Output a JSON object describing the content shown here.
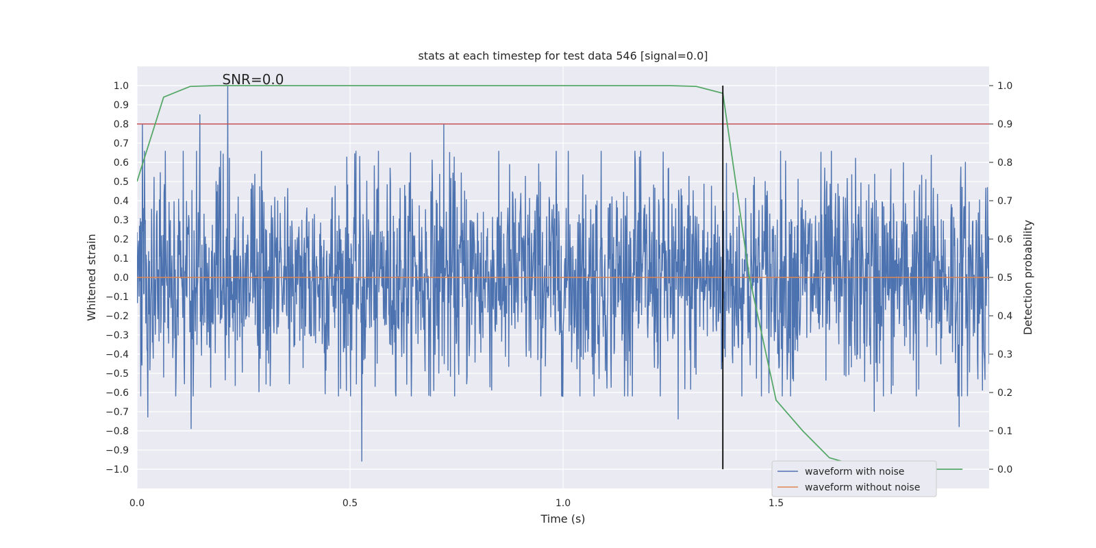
{
  "chart_data": {
    "type": "line",
    "title": "stats at each timestep for test data 546 [signal=0.0]",
    "annotation": "SNR=0.0",
    "xlabel": "Time (s)",
    "ylabel": "Whitened strain",
    "y2label": "Detection probability",
    "xlim": [
      0.0,
      2.0
    ],
    "ylim": [
      -1.1,
      1.1
    ],
    "y2lim": [
      -0.05,
      1.05
    ],
    "xticks": [
      0.0,
      0.5,
      1.0,
      1.5
    ],
    "xtick_labels": [
      "0.0",
      "0.5",
      "1.0",
      "1.5"
    ],
    "yticks": [
      1.0,
      0.9,
      0.8,
      0.7,
      0.6,
      0.5,
      0.4,
      0.3,
      0.2,
      0.1,
      0.0,
      -0.1,
      -0.2,
      -0.3,
      -0.4,
      -0.5,
      -0.6,
      -0.7,
      -0.8,
      -0.9,
      -1.0
    ],
    "ytick_labels": [
      "1.0",
      "0.9",
      "0.8",
      "0.7",
      "0.6",
      "0.5",
      "0.4",
      "0.3",
      "0.2",
      "0.1",
      "0.0",
      "−0.1",
      "−0.2",
      "−0.3",
      "−0.4",
      "−0.5",
      "−0.6",
      "−0.7",
      "−0.8",
      "−0.9",
      "−1.0"
    ],
    "y2ticks": [
      1.0,
      0.9,
      0.8,
      0.7,
      0.6,
      0.5,
      0.4,
      0.3,
      0.2,
      0.1,
      0.0
    ],
    "y2tick_labels": [
      "1.0",
      "0.9",
      "0.8",
      "0.7",
      "0.6",
      "0.5",
      "0.4",
      "0.3",
      "0.2",
      "0.1",
      "0.0"
    ],
    "grid": true,
    "legend_position": "lower-right",
    "legend": [
      "waveform with noise",
      "waveform without noise"
    ],
    "series": [
      {
        "name": "waveform with noise",
        "color": "#4c72b0",
        "kind": "noise",
        "samples": 2048,
        "amplitude_std": 0.28,
        "peaks": [
          {
            "x": 0.013,
            "y": 0.8
          },
          {
            "x": 0.025,
            "y": -0.73
          },
          {
            "x": 0.127,
            "y": -0.79
          },
          {
            "x": 0.148,
            "y": 0.85
          },
          {
            "x": 0.213,
            "y": 1.0
          },
          {
            "x": 0.528,
            "y": -0.96
          },
          {
            "x": 0.72,
            "y": 0.8
          },
          {
            "x": 1.17,
            "y": 0.6
          },
          {
            "x": 1.27,
            "y": -0.74
          },
          {
            "x": 1.73,
            "y": -0.7
          },
          {
            "x": 1.93,
            "y": -0.78
          }
        ]
      },
      {
        "name": "waveform without noise",
        "color": "#dd8452",
        "kind": "line",
        "x": [
          0.0,
          2.0
        ],
        "y": [
          0.0,
          0.0
        ]
      }
    ],
    "detection_probability": {
      "name": "detection probability",
      "color": "#55a868",
      "x": [
        0.0,
        0.0625,
        0.125,
        0.1875,
        0.25,
        0.3125,
        0.375,
        0.4375,
        0.5,
        0.5625,
        0.625,
        0.6875,
        0.75,
        0.8125,
        0.875,
        0.9375,
        1.0,
        1.0625,
        1.125,
        1.1875,
        1.25,
        1.3125,
        1.375,
        1.4375,
        1.5,
        1.5625,
        1.625,
        1.6875,
        1.75,
        1.8125,
        1.875,
        1.9375
      ],
      "y": [
        0.75,
        0.97,
        0.998,
        1.0,
        1.0,
        1.0,
        1.0,
        1.0,
        1.0,
        1.0,
        1.0,
        1.0,
        1.0,
        1.0,
        1.0,
        1.0,
        1.0,
        1.0,
        1.0,
        1.0,
        1.0,
        0.998,
        0.98,
        0.5,
        0.18,
        0.1,
        0.03,
        0.01,
        0.0,
        0.0,
        0.0,
        0.0
      ]
    },
    "threshold": {
      "value": 0.9,
      "axis": "right",
      "color": "#c44e52"
    },
    "vertical_marker": {
      "x": 1.375,
      "y_from": 0.0,
      "y_to": 1.0,
      "axis": "right",
      "color": "#000000"
    }
  }
}
